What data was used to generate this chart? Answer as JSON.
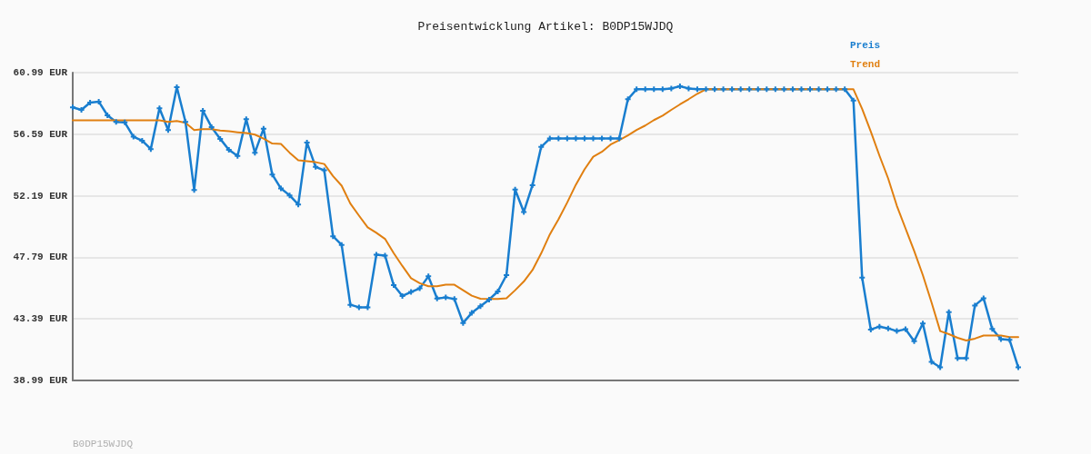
{
  "chart_data": {
    "type": "line",
    "title": "Preisentwicklung Artikel: B0DP15WJDQ",
    "annotations": [
      "B0DP15WJDQ"
    ],
    "categories": [
      null,
      null,
      null,
      null,
      null,
      null,
      null,
      null,
      null,
      null,
      null,
      null,
      null,
      null,
      null,
      null,
      null,
      null,
      null,
      null,
      null,
      null,
      null,
      null,
      null,
      null,
      null,
      null,
      null,
      null,
      null,
      null,
      null,
      null,
      null,
      null,
      null,
      null,
      null,
      null,
      null,
      null,
      null,
      null,
      null,
      null,
      null,
      null,
      null,
      null,
      null,
      null,
      null,
      null,
      null,
      null,
      null,
      null,
      null,
      null,
      null,
      null,
      null,
      null,
      null,
      null,
      null,
      null,
      null,
      null,
      null,
      null,
      null,
      null,
      null,
      null,
      null,
      null,
      null,
      null,
      null,
      null,
      null,
      null,
      null,
      null,
      null,
      null,
      null,
      null,
      null,
      null,
      null,
      null,
      null,
      null,
      null,
      null,
      null,
      null,
      null,
      null,
      null,
      null,
      null,
      null,
      null,
      null,
      null,
      null
    ],
    "series": [
      {
        "name": "Preis",
        "color": "#197ecf",
        "values": [
          58.51,
          58.33,
          58.85,
          58.92,
          57.94,
          57.47,
          57.43,
          56.41,
          56.13,
          55.53,
          58.44,
          56.89,
          59.95,
          57.47,
          52.61,
          58.27,
          57.1,
          56.26,
          55.48,
          55.03,
          57.66,
          55.27,
          56.99,
          53.71,
          52.71,
          52.22,
          51.57,
          56.0,
          54.25,
          54.01,
          49.3,
          48.68,
          44.4,
          44.22,
          44.22,
          47.98,
          47.92,
          45.8,
          45.03,
          45.31,
          45.57,
          46.43,
          44.85,
          44.92,
          44.81,
          43.1,
          43.82,
          44.29,
          44.77,
          45.35,
          46.52,
          52.63,
          51.03,
          52.95,
          55.68,
          56.28,
          56.28,
          56.28,
          56.28,
          56.28,
          56.28,
          56.28,
          56.28,
          56.28,
          59.09,
          59.8,
          59.8,
          59.8,
          59.8,
          59.86,
          60.02,
          59.86,
          59.8,
          59.8,
          59.8,
          59.8,
          59.8,
          59.8,
          59.8,
          59.8,
          59.8,
          59.8,
          59.8,
          59.8,
          59.8,
          59.8,
          59.8,
          59.8,
          59.8,
          59.8,
          59.0,
          46.34,
          42.63,
          42.84,
          42.71,
          42.52,
          42.65,
          41.8,
          43.06,
          40.32,
          39.93,
          43.88,
          40.58,
          40.58,
          44.35,
          44.87,
          42.67,
          41.94,
          41.89,
          39.93
        ]
      },
      {
        "name": "Trend",
        "color": "#e07f10",
        "marker": "none",
        "values": [
          57.58,
          57.58,
          57.58,
          57.58,
          57.58,
          57.58,
          57.58,
          57.58,
          57.58,
          57.58,
          57.58,
          57.47,
          57.53,
          57.4,
          56.89,
          56.95,
          56.95,
          56.86,
          56.8,
          56.73,
          56.67,
          56.56,
          56.28,
          55.92,
          55.9,
          55.27,
          54.72,
          54.66,
          54.59,
          54.46,
          53.6,
          52.91,
          51.64,
          50.77,
          49.93,
          49.54,
          49.11,
          48.09,
          47.17,
          46.3,
          45.94,
          45.72,
          45.72,
          45.83,
          45.83,
          45.44,
          45.05,
          44.83,
          44.81,
          44.81,
          44.87,
          45.44,
          46.06,
          46.88,
          48.07,
          49.43,
          50.51,
          51.7,
          52.98,
          54.08,
          54.98,
          55.33,
          55.85,
          56.17,
          56.5,
          56.89,
          57.21,
          57.6,
          57.92,
          58.33,
          58.72,
          59.09,
          59.48,
          59.8,
          59.8,
          59.8,
          59.8,
          59.8,
          59.8,
          59.8,
          59.8,
          59.8,
          59.8,
          59.8,
          59.8,
          59.8,
          59.8,
          59.8,
          59.8,
          59.8,
          59.8,
          58.4,
          56.78,
          55.05,
          53.43,
          51.48,
          49.86,
          48.24,
          46.52,
          44.57,
          42.52,
          42.3,
          42.04,
          41.85,
          41.98,
          42.2,
          42.2,
          42.2,
          42.09,
          42.09
        ]
      }
    ],
    "ylim": [
      38.99,
      60.99
    ],
    "yticks": [
      {
        "value": 38.99,
        "label": "38.99 EUR"
      },
      {
        "value": 43.39,
        "label": "43.39 EUR"
      },
      {
        "value": 47.79,
        "label": "47.79 EUR"
      },
      {
        "value": 52.19,
        "label": "52.19 EUR"
      },
      {
        "value": 56.59,
        "label": "56.59 EUR"
      },
      {
        "value": 60.99,
        "label": "60.99 EUR"
      }
    ],
    "grid": "y",
    "legend": "top right",
    "tick_labels": "y",
    "marker": "cross",
    "line_style": "solid"
  }
}
